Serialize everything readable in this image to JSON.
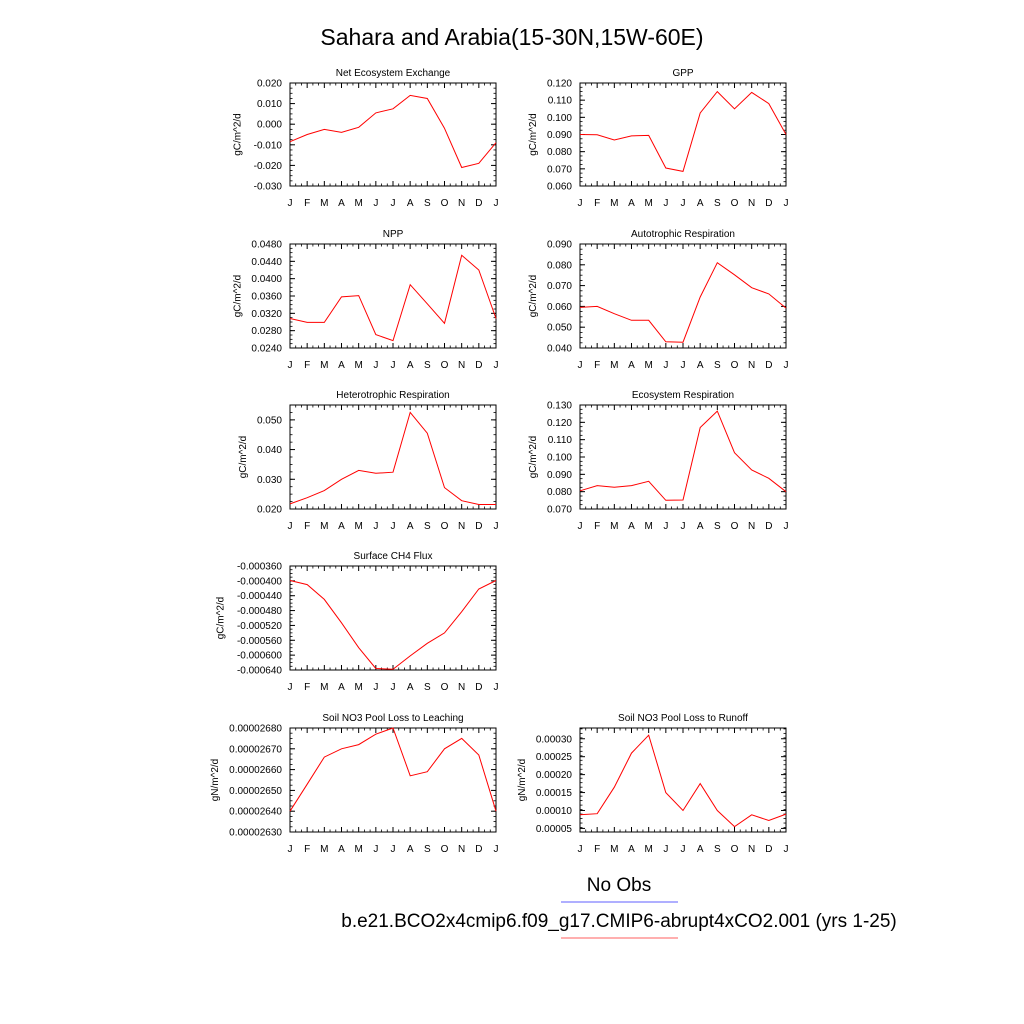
{
  "figure": {
    "title": "Sahara and Arabia(15-30N,15W-60E)",
    "legend": {
      "obs_label": "No Obs",
      "obs_color": "#7f7fff",
      "model_label": "b.e21.BCO2x4cmip6.f09_g17.CMIP6-abrupt4xCO2.001 (yrs 1-25)",
      "model_color": "#ff7f7f"
    },
    "line_color": "#ff0000"
  },
  "chart_data": [
    {
      "type": "line",
      "title": "Net Ecosystem Exchange",
      "ylabel": "gC/m^2/d",
      "categories": [
        "J",
        "F",
        "M",
        "A",
        "M",
        "J",
        "J",
        "A",
        "S",
        "O",
        "N",
        "D",
        "J"
      ],
      "ylim": [
        -0.03,
        0.02
      ],
      "yticks": [
        "0.020",
        "0.010",
        "0.000",
        "-0.010",
        "-0.020",
        "-0.030"
      ],
      "series": [
        {
          "values": [
            -0.0085,
            -0.005,
            -0.0025,
            -0.004,
            -0.0015,
            0.0055,
            0.0075,
            0.014,
            0.0125,
            -0.002,
            -0.021,
            -0.019,
            -0.009
          ]
        }
      ]
    },
    {
      "type": "line",
      "title": "GPP",
      "ylabel": "gC/m^2/d",
      "categories": [
        "J",
        "F",
        "M",
        "A",
        "M",
        "J",
        "J",
        "A",
        "S",
        "O",
        "N",
        "D",
        "J"
      ],
      "ylim": [
        0.06,
        0.12
      ],
      "yticks": [
        "0.120",
        "0.110",
        "0.100",
        "0.090",
        "0.080",
        "0.070",
        "0.060"
      ],
      "series": [
        {
          "values": [
            0.09,
            0.0898,
            0.0868,
            0.0892,
            0.0895,
            0.0705,
            0.0685,
            0.1025,
            0.115,
            0.105,
            0.1145,
            0.108,
            0.09
          ]
        }
      ]
    },
    {
      "type": "line",
      "title": "NPP",
      "ylabel": "gC/m^2/d",
      "categories": [
        "J",
        "F",
        "M",
        "A",
        "M",
        "J",
        "J",
        "A",
        "S",
        "O",
        "N",
        "D",
        "J"
      ],
      "ylim": [
        0.024,
        0.048
      ],
      "yticks": [
        "0.0480",
        "0.0440",
        "0.0400",
        "0.0360",
        "0.0320",
        "0.0280",
        "0.0240"
      ],
      "series": [
        {
          "values": [
            0.0308,
            0.0299,
            0.0299,
            0.0358,
            0.0361,
            0.0271,
            0.0257,
            0.0386,
            0.0342,
            0.0297,
            0.0454,
            0.042,
            0.0308
          ]
        }
      ]
    },
    {
      "type": "line",
      "title": "Autotrophic Respiration",
      "ylabel": "gC/m^2/d",
      "categories": [
        "J",
        "F",
        "M",
        "A",
        "M",
        "J",
        "J",
        "A",
        "S",
        "O",
        "N",
        "D",
        "J"
      ],
      "ylim": [
        0.04,
        0.09
      ],
      "yticks": [
        "0.090",
        "0.080",
        "0.070",
        "0.060",
        "0.050",
        "0.040"
      ],
      "series": [
        {
          "values": [
            0.0595,
            0.06,
            0.0565,
            0.0533,
            0.0533,
            0.043,
            0.0428,
            0.0645,
            0.081,
            0.0752,
            0.069,
            0.066,
            0.0592
          ]
        }
      ]
    },
    {
      "type": "line",
      "title": "Heterotrophic Respiration",
      "ylabel": "gC/m^2/d",
      "categories": [
        "J",
        "F",
        "M",
        "A",
        "M",
        "J",
        "J",
        "A",
        "S",
        "O",
        "N",
        "D",
        "J"
      ],
      "ylim": [
        0.02,
        0.055
      ],
      "yticks": [
        "0.050",
        "0.040",
        "0.030",
        "0.020"
      ],
      "series": [
        {
          "values": [
            0.0217,
            0.0238,
            0.0262,
            0.03,
            0.033,
            0.032,
            0.0324,
            0.0525,
            0.0455,
            0.0272,
            0.0228,
            0.0215,
            0.0215
          ]
        }
      ]
    },
    {
      "type": "line",
      "title": "Ecosystem Respiration",
      "ylabel": "gC/m^2/d",
      "categories": [
        "J",
        "F",
        "M",
        "A",
        "M",
        "J",
        "J",
        "A",
        "S",
        "O",
        "N",
        "D",
        "J"
      ],
      "ylim": [
        0.07,
        0.13
      ],
      "yticks": [
        "0.130",
        "0.120",
        "0.110",
        "0.100",
        "0.090",
        "0.080",
        "0.070"
      ],
      "series": [
        {
          "values": [
            0.0805,
            0.0835,
            0.0825,
            0.0835,
            0.086,
            0.075,
            0.0752,
            0.117,
            0.1265,
            0.1025,
            0.0925,
            0.0877,
            0.08
          ]
        }
      ]
    },
    {
      "type": "line",
      "title": "Surface CH4 Flux",
      "ylabel": "gC/m^2/d",
      "categories": [
        "J",
        "F",
        "M",
        "A",
        "M",
        "J",
        "J",
        "A",
        "S",
        "O",
        "N",
        "D",
        "J"
      ],
      "ylim": [
        -0.00064,
        -0.00036
      ],
      "yticks": [
        "-0.000360",
        "-0.000400",
        "-0.000440",
        "-0.000480",
        "-0.000520",
        "-0.000560",
        "-0.000600",
        "-0.000640"
      ],
      "series": [
        {
          "values": [
            -0.000399,
            -0.00041,
            -0.00045,
            -0.000513,
            -0.00058,
            -0.000636,
            -0.000638,
            -0.000602,
            -0.000568,
            -0.00054,
            -0.000483,
            -0.000422,
            -0.000399
          ]
        }
      ]
    },
    {
      "type": "line",
      "title": "Soil NO3 Pool Loss to Leaching",
      "ylabel": "gN/m^2/d",
      "categories": [
        "J",
        "F",
        "M",
        "A",
        "M",
        "J",
        "J",
        "A",
        "S",
        "O",
        "N",
        "D",
        "J"
      ],
      "ylim": [
        2.63e-05,
        2.68e-05
      ],
      "yticks": [
        "0.00002680",
        "0.00002670",
        "0.00002660",
        "0.00002650",
        "0.00002640",
        "0.00002630"
      ],
      "series": [
        {
          "values": [
            2.64e-05,
            2.653e-05,
            2.666e-05,
            2.67e-05,
            2.672e-05,
            2.677e-05,
            2.68e-05,
            2.657e-05,
            2.659e-05,
            2.67e-05,
            2.675e-05,
            2.667e-05,
            2.64e-05
          ]
        }
      ]
    },
    {
      "type": "line",
      "title": "Soil NO3 Pool Loss to Runoff",
      "ylabel": "gN/m^2/d",
      "categories": [
        "J",
        "F",
        "M",
        "A",
        "M",
        "J",
        "J",
        "A",
        "S",
        "O",
        "N",
        "D",
        "J"
      ],
      "ylim": [
        4e-05,
        0.00033
      ],
      "yticks": [
        "0.00030",
        "0.00025",
        "0.00020",
        "0.00015",
        "0.00010",
        "0.00005"
      ],
      "series": [
        {
          "values": [
            8.8e-05,
            9.1e-05,
            0.000165,
            0.00026,
            0.00031,
            0.00015,
            0.0001,
            0.000175,
            0.0001,
            5.5e-05,
            8.8e-05,
            7.2e-05,
            9e-05
          ]
        }
      ]
    }
  ]
}
